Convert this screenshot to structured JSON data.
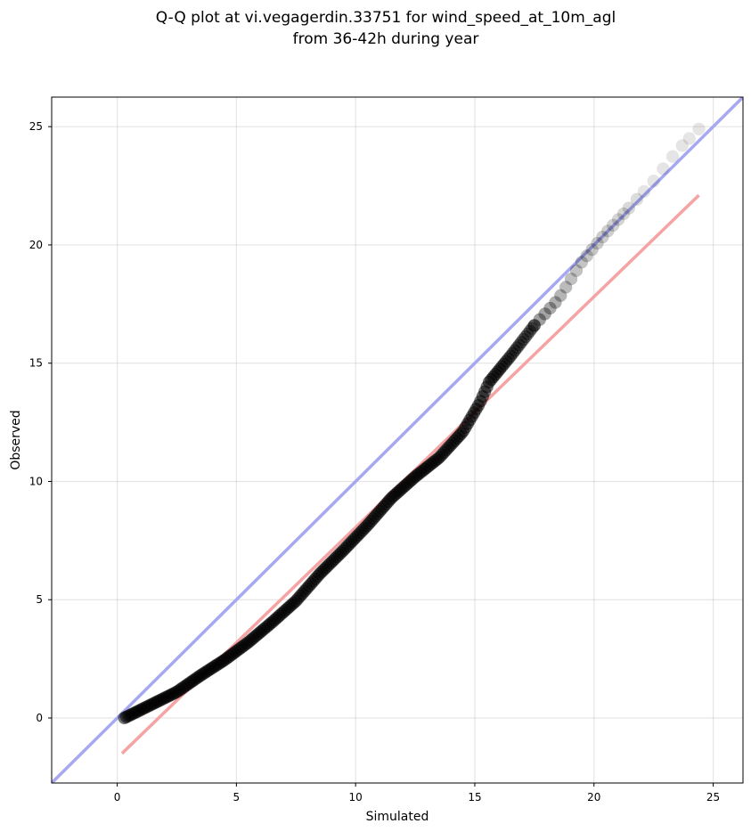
{
  "chart_data": {
    "type": "scatter",
    "title": [
      "Q-Q plot at vi.vegagerdin.33751 for wind_speed_at_10m_agl",
      "from 36-42h during year"
    ],
    "xlabel": "Simulated",
    "ylabel": "Observed",
    "xlim": [
      -2.75,
      26.25
    ],
    "ylim": [
      -2.75,
      26.25
    ],
    "xticks": [
      0,
      5,
      10,
      15,
      20,
      25
    ],
    "yticks": [
      0,
      5,
      10,
      15,
      20,
      25
    ],
    "grid": true,
    "colors": {
      "identity_line": "#a6a8f2",
      "fit_line": "#f5a3a3",
      "points": "#000000"
    },
    "reference_lines": [
      {
        "kind": "identity",
        "x": [
          -2.75,
          26.25
        ],
        "y": [
          -2.75,
          26.25
        ]
      },
      {
        "kind": "fit",
        "x": [
          0.2,
          24.4
        ],
        "y": [
          -1.5,
          22.1
        ]
      }
    ],
    "points_outline": {
      "x": [
        0.3,
        0.8,
        1.5,
        2.5,
        3.5,
        4.5,
        5.5,
        6.5,
        7.5,
        8.5,
        9.5,
        10.5,
        11.5,
        12.5,
        13.5,
        14.5,
        15.2,
        15.6,
        16.5,
        17.5,
        18.5,
        19.5,
        20.5,
        21.5,
        22.5,
        23.5,
        24.4
      ],
      "y": [
        0.0,
        0.25,
        0.6,
        1.1,
        1.8,
        2.45,
        3.2,
        4.05,
        4.95,
        6.1,
        7.1,
        8.15,
        9.3,
        10.2,
        11.0,
        12.1,
        13.3,
        14.2,
        15.3,
        16.6,
        17.7,
        19.3,
        20.5,
        21.6,
        22.7,
        24.0,
        24.9
      ]
    }
  }
}
